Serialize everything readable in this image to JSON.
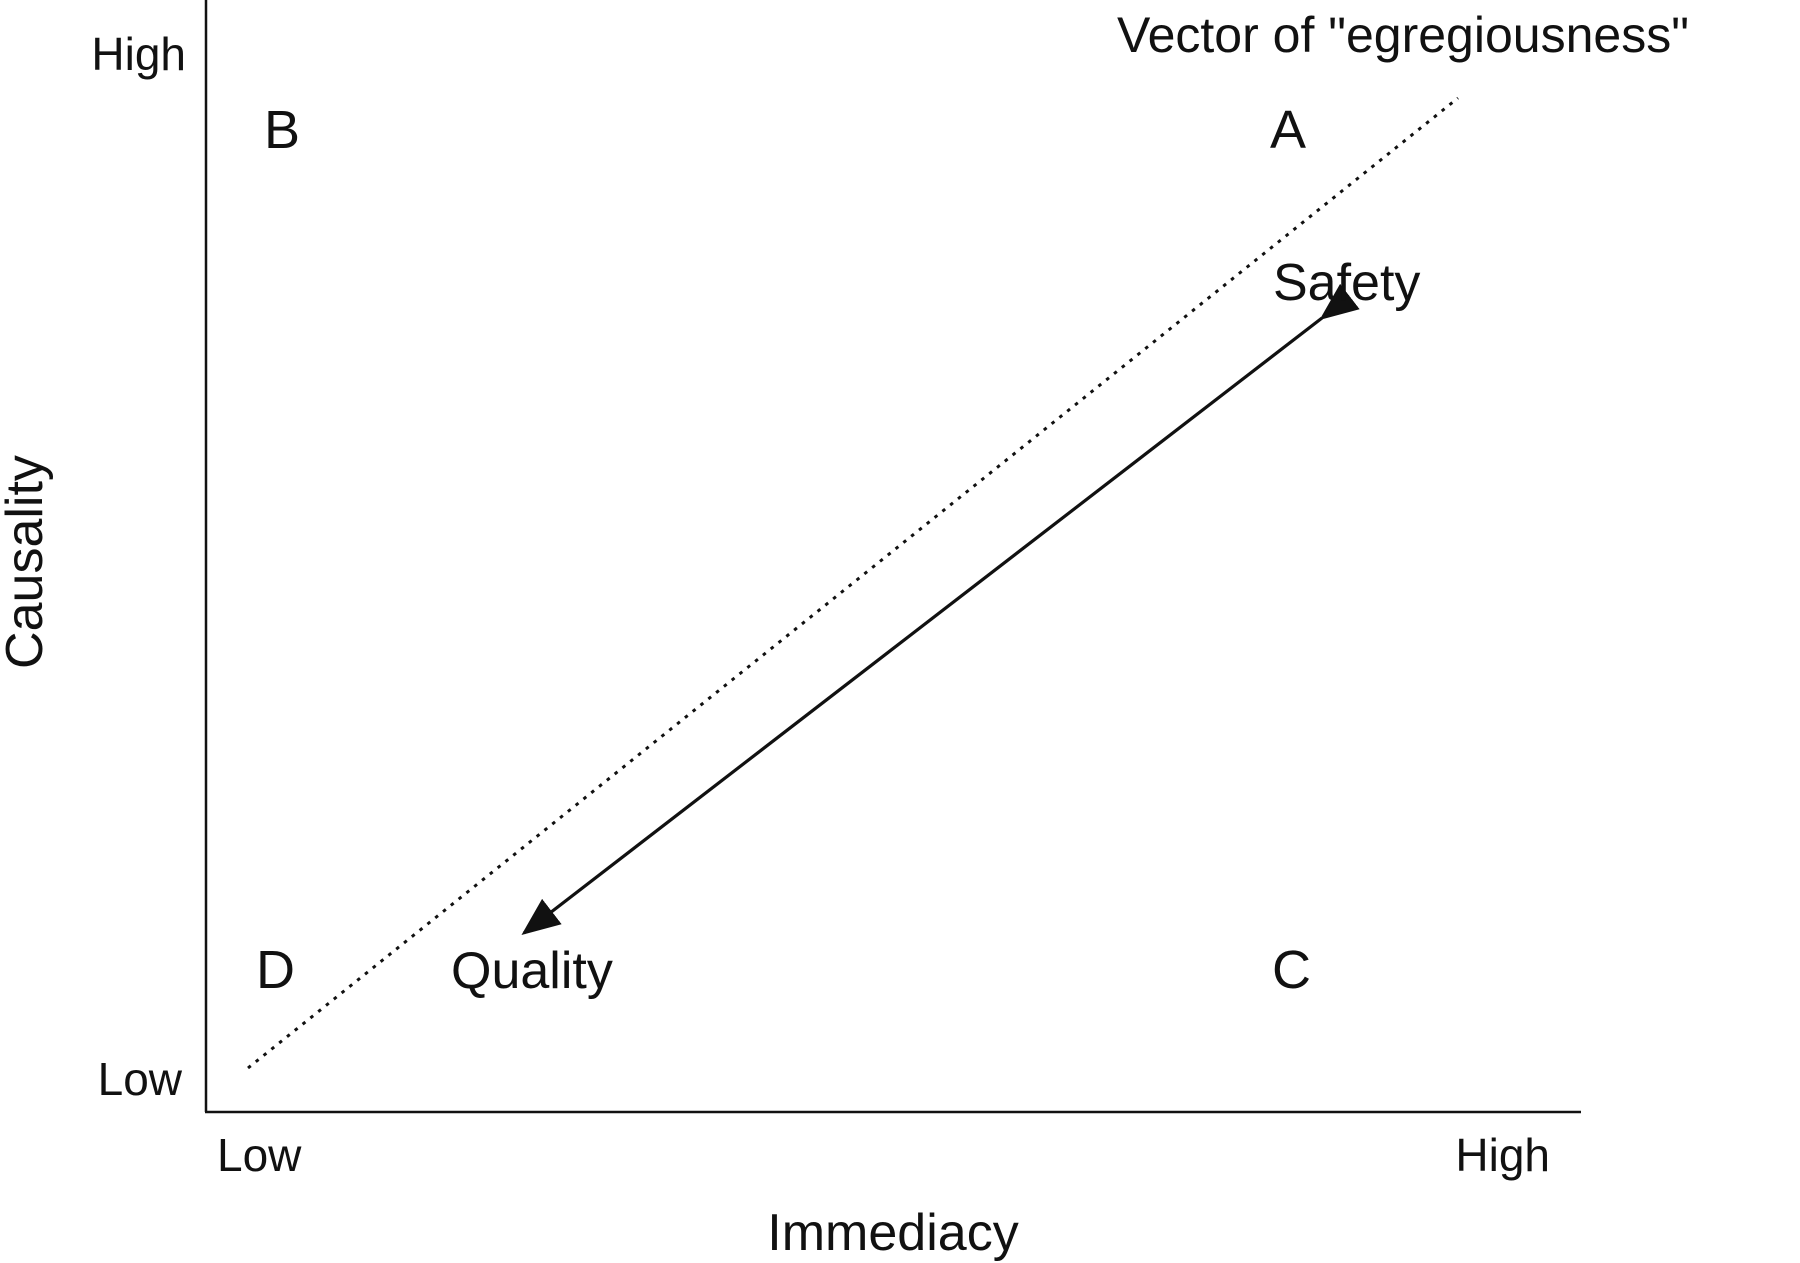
{
  "axes": {
    "x_title": "Immediacy",
    "y_title": "Causality",
    "x_low": "Low",
    "x_high": "High",
    "y_low": "Low",
    "y_high": "High"
  },
  "quadrants": {
    "a": "A",
    "b": "B",
    "c": "C",
    "d": "D"
  },
  "items": {
    "safety": "Safety",
    "quality": "Quality"
  },
  "vector": {
    "label": "Vector of \"egregiousness\""
  },
  "colors": {
    "ink": "#111111",
    "background": "#ffffff"
  }
}
